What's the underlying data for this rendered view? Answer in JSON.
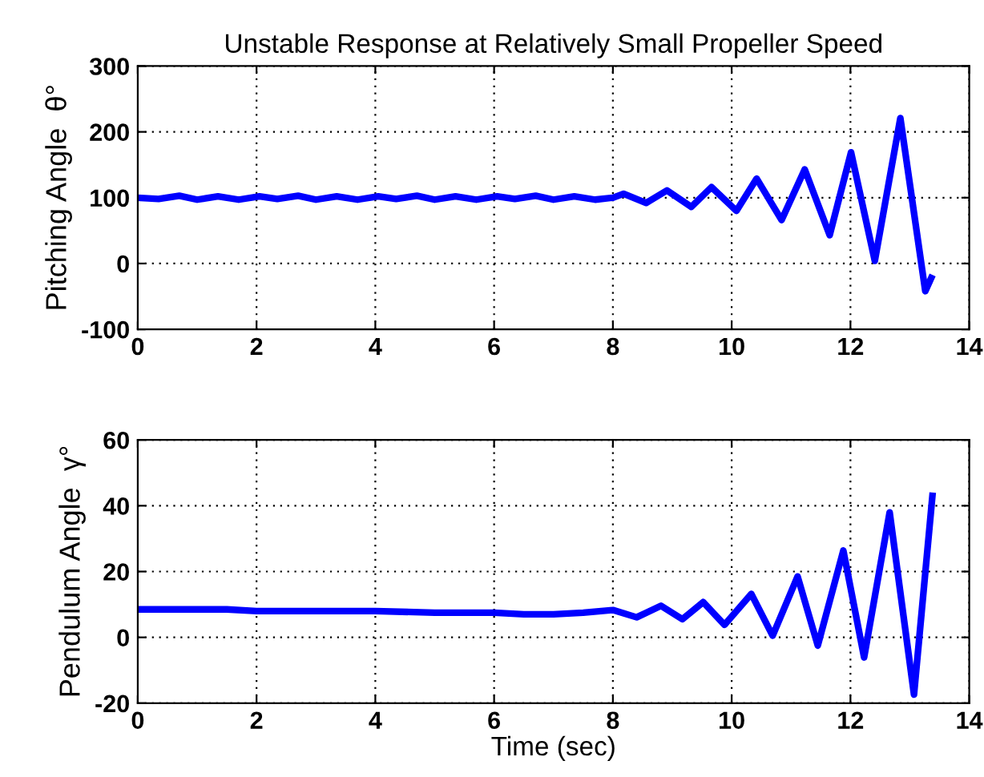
{
  "chart_data": [
    {
      "type": "line",
      "title": "Unstable Response at Relatively Small Propeller Speed",
      "ylabel": "Pitching Angle  θ°",
      "xlim": [
        0,
        14
      ],
      "xticks": [
        0,
        2,
        4,
        6,
        8,
        10,
        12,
        14
      ],
      "ylim": [
        -100,
        300
      ],
      "yticks": [
        -100,
        0,
        100,
        200,
        300
      ],
      "grid": true,
      "line_style": "solid",
      "marker": "none",
      "series": [
        {
          "color": "#0000ff",
          "x": [
            0,
            0.35,
            0.7,
            1.0,
            1.35,
            1.7,
            2.05,
            2.35,
            2.7,
            3.0,
            3.35,
            3.7,
            4.05,
            4.35,
            4.7,
            5.0,
            5.35,
            5.7,
            6.05,
            6.35,
            6.7,
            7.0,
            7.35,
            7.7,
            8.0,
            8.18,
            8.56,
            8.91,
            9.32,
            9.66,
            10.08,
            10.42,
            10.84,
            11.23,
            11.65,
            12.01,
            12.41,
            12.84,
            13.26,
            13.36
          ],
          "values": [
            100,
            98,
            103,
            97,
            102,
            97,
            102,
            98,
            103,
            97,
            102,
            97,
            102,
            98,
            103,
            97,
            102,
            97,
            102,
            98,
            103,
            97,
            102,
            97,
            100,
            106,
            92,
            111,
            86,
            116,
            80,
            129,
            66,
            143,
            43,
            169,
            4,
            221,
            -42,
            -22
          ]
        }
      ]
    },
    {
      "type": "line",
      "xlabel": "Time (sec)",
      "ylabel": "Pendulum Angle  γ°",
      "xlim": [
        0,
        14
      ],
      "xticks": [
        0,
        2,
        4,
        6,
        8,
        10,
        12,
        14
      ],
      "ylim": [
        -20,
        60
      ],
      "yticks": [
        -20,
        0,
        20,
        40,
        60
      ],
      "grid": true,
      "line_style": "solid",
      "marker": "none",
      "series": [
        {
          "color": "#0000ff",
          "x": [
            0,
            0.5,
            1.0,
            1.5,
            2.0,
            3.0,
            4.0,
            5.0,
            5.5,
            6.0,
            6.5,
            7.0,
            7.5,
            8.0,
            8.4,
            8.81,
            9.17,
            9.52,
            9.88,
            10.33,
            10.69,
            11.11,
            11.45,
            11.88,
            12.23,
            12.66,
            13.07,
            13.38
          ],
          "values": [
            8.5,
            8.5,
            8.5,
            8.5,
            8,
            8,
            8,
            7.5,
            7.5,
            7.5,
            7,
            7,
            7.5,
            8.3,
            6.1,
            9.6,
            5.5,
            10.7,
            3.8,
            13.2,
            0.5,
            18.5,
            -2.5,
            26.4,
            -6.1,
            38,
            -17.4,
            43
          ]
        }
      ]
    }
  ]
}
